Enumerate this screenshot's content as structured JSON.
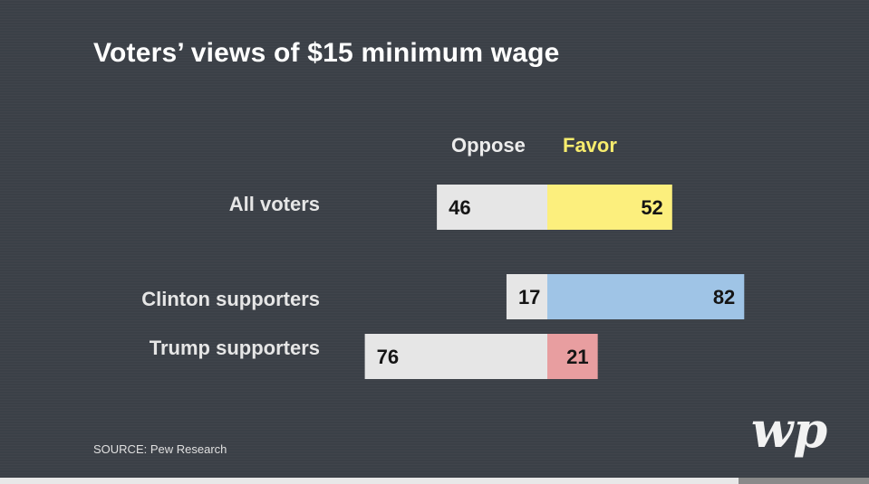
{
  "chart_data": {
    "type": "bar",
    "orientation": "horizontal-diverging",
    "title": "Voters’ views of $15 minimum wage",
    "legend": [
      {
        "name": "Oppose",
        "color": "#e6e6e6",
        "label_color": "#ececec"
      },
      {
        "name": "Favor",
        "color": "#fcef7d",
        "label_color": "#f7ec6d"
      }
    ],
    "categories": [
      "All voters",
      "Clinton supporters",
      "Trump supporters"
    ],
    "series": [
      {
        "name": "Oppose",
        "values": [
          46,
          17,
          76
        ],
        "colors": [
          "#e6e6e6",
          "#e6e6e6",
          "#e6e6e6"
        ]
      },
      {
        "name": "Favor",
        "values": [
          52,
          82,
          21
        ],
        "colors": [
          "#fcef7d",
          "#9fc4e6",
          "#e89ea0"
        ]
      }
    ],
    "value_labels": {
      "oppose": [
        "46",
        "17",
        "76"
      ],
      "favor": [
        "52",
        "82",
        "21"
      ]
    },
    "source": "SOURCE: Pew Research"
  },
  "logo": {
    "name": "wp-logo",
    "text": "wp"
  },
  "video": {
    "progress": 0.85
  }
}
